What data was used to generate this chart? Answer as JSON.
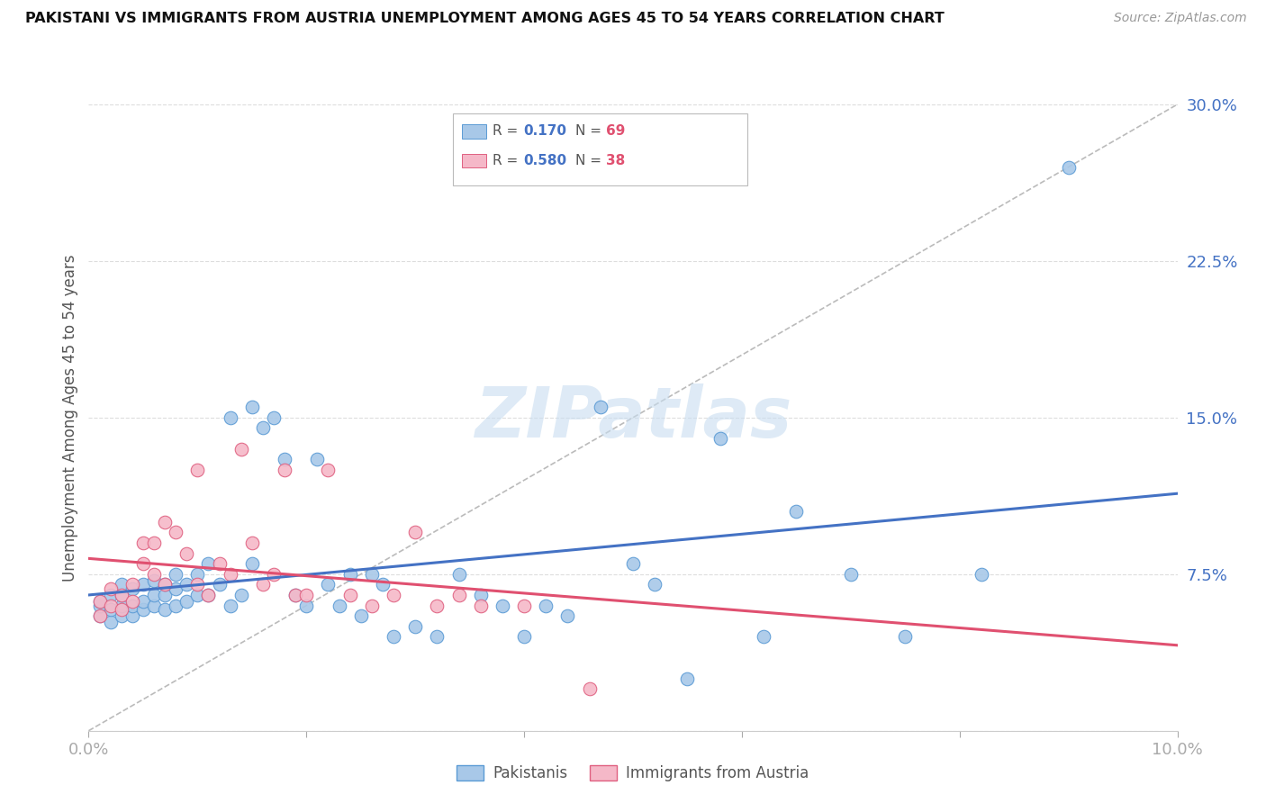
{
  "title": "PAKISTANI VS IMMIGRANTS FROM AUSTRIA UNEMPLOYMENT AMONG AGES 45 TO 54 YEARS CORRELATION CHART",
  "source": "Source: ZipAtlas.com",
  "ylabel": "Unemployment Among Ages 45 to 54 years",
  "xlim": [
    0.0,
    0.1
  ],
  "ylim": [
    0.0,
    0.3
  ],
  "xtick_positions": [
    0.0,
    0.02,
    0.04,
    0.06,
    0.08,
    0.1
  ],
  "xtick_labels": [
    "0.0%",
    "",
    "",
    "",
    "",
    "10.0%"
  ],
  "ytick_positions": [
    0.0,
    0.075,
    0.15,
    0.225,
    0.3
  ],
  "ytick_labels": [
    "",
    "7.5%",
    "15.0%",
    "22.5%",
    "30.0%"
  ],
  "pakistani_color": "#a8c8e8",
  "austria_color": "#f5b8c8",
  "pakistani_edge_color": "#5b9bd5",
  "austria_edge_color": "#e06080",
  "pakistani_R": "0.170",
  "pakistani_N": "69",
  "austria_R": "0.580",
  "austria_N": "38",
  "pakistani_line_color": "#4472c4",
  "austria_line_color": "#e05070",
  "diagonal_color": "#bbbbbb",
  "watermark_text": "ZIPatlas",
  "watermark_color": "#c8ddf0",
  "tick_color": "#4472c4",
  "background_color": "#ffffff",
  "grid_color": "#dddddd",
  "pakistani_x": [
    0.001,
    0.001,
    0.001,
    0.002,
    0.002,
    0.002,
    0.003,
    0.003,
    0.003,
    0.003,
    0.004,
    0.004,
    0.004,
    0.005,
    0.005,
    0.005,
    0.006,
    0.006,
    0.006,
    0.007,
    0.007,
    0.007,
    0.008,
    0.008,
    0.008,
    0.009,
    0.009,
    0.01,
    0.01,
    0.011,
    0.011,
    0.012,
    0.013,
    0.013,
    0.014,
    0.015,
    0.015,
    0.016,
    0.017,
    0.018,
    0.019,
    0.02,
    0.021,
    0.022,
    0.023,
    0.024,
    0.025,
    0.026,
    0.027,
    0.028,
    0.03,
    0.032,
    0.034,
    0.036,
    0.038,
    0.04,
    0.042,
    0.044,
    0.047,
    0.05,
    0.052,
    0.055,
    0.058,
    0.062,
    0.065,
    0.07,
    0.075,
    0.082,
    0.09
  ],
  "pakistani_y": [
    0.055,
    0.06,
    0.062,
    0.052,
    0.058,
    0.065,
    0.055,
    0.06,
    0.065,
    0.07,
    0.055,
    0.06,
    0.068,
    0.058,
    0.062,
    0.07,
    0.06,
    0.065,
    0.072,
    0.058,
    0.065,
    0.07,
    0.06,
    0.068,
    0.075,
    0.062,
    0.07,
    0.065,
    0.075,
    0.065,
    0.08,
    0.07,
    0.06,
    0.15,
    0.065,
    0.08,
    0.155,
    0.145,
    0.15,
    0.13,
    0.065,
    0.06,
    0.13,
    0.07,
    0.06,
    0.075,
    0.055,
    0.075,
    0.07,
    0.045,
    0.05,
    0.045,
    0.075,
    0.065,
    0.06,
    0.045,
    0.06,
    0.055,
    0.155,
    0.08,
    0.07,
    0.025,
    0.14,
    0.045,
    0.105,
    0.075,
    0.045,
    0.075,
    0.27
  ],
  "austria_x": [
    0.001,
    0.001,
    0.002,
    0.002,
    0.003,
    0.003,
    0.004,
    0.004,
    0.005,
    0.005,
    0.006,
    0.006,
    0.007,
    0.007,
    0.008,
    0.009,
    0.01,
    0.01,
    0.011,
    0.012,
    0.013,
    0.014,
    0.015,
    0.016,
    0.017,
    0.018,
    0.019,
    0.02,
    0.022,
    0.024,
    0.026,
    0.028,
    0.03,
    0.032,
    0.034,
    0.036,
    0.04,
    0.046
  ],
  "austria_y": [
    0.055,
    0.062,
    0.06,
    0.068,
    0.058,
    0.065,
    0.062,
    0.07,
    0.08,
    0.09,
    0.075,
    0.09,
    0.07,
    0.1,
    0.095,
    0.085,
    0.07,
    0.125,
    0.065,
    0.08,
    0.075,
    0.135,
    0.09,
    0.07,
    0.075,
    0.125,
    0.065,
    0.065,
    0.125,
    0.065,
    0.06,
    0.065,
    0.095,
    0.06,
    0.065,
    0.06,
    0.06,
    0.02
  ]
}
